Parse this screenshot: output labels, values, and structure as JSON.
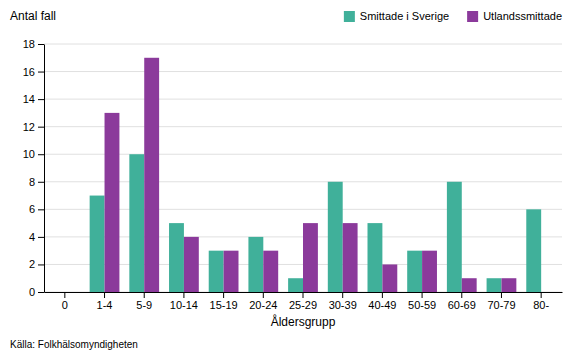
{
  "chart_data": {
    "type": "bar",
    "ylabel": "Antal fall",
    "xlabel": "Åldersgrupp",
    "source": "Källa: Folkhälsomyndigheten",
    "categories": [
      "0",
      "1-4",
      "5-9",
      "10-14",
      "15-19",
      "20-24",
      "25-29",
      "30-39",
      "40-49",
      "50-59",
      "60-69",
      "70-79",
      "80-"
    ],
    "series": [
      {
        "name": "Smittade i Sverige",
        "color": "#40B09A",
        "values": [
          0,
          7,
          10,
          5,
          3,
          4,
          1,
          8,
          5,
          3,
          8,
          1,
          6
        ]
      },
      {
        "name": "Utlandssmittade",
        "color": "#8B3A9B",
        "values": [
          0,
          13,
          17,
          4,
          3,
          3,
          5,
          5,
          2,
          3,
          1,
          1,
          0
        ]
      }
    ],
    "ylim": [
      0,
      18
    ],
    "yticks": [
      0,
      2,
      4,
      6,
      8,
      10,
      12,
      14,
      16,
      18
    ],
    "grid": true,
    "legend": "top"
  }
}
